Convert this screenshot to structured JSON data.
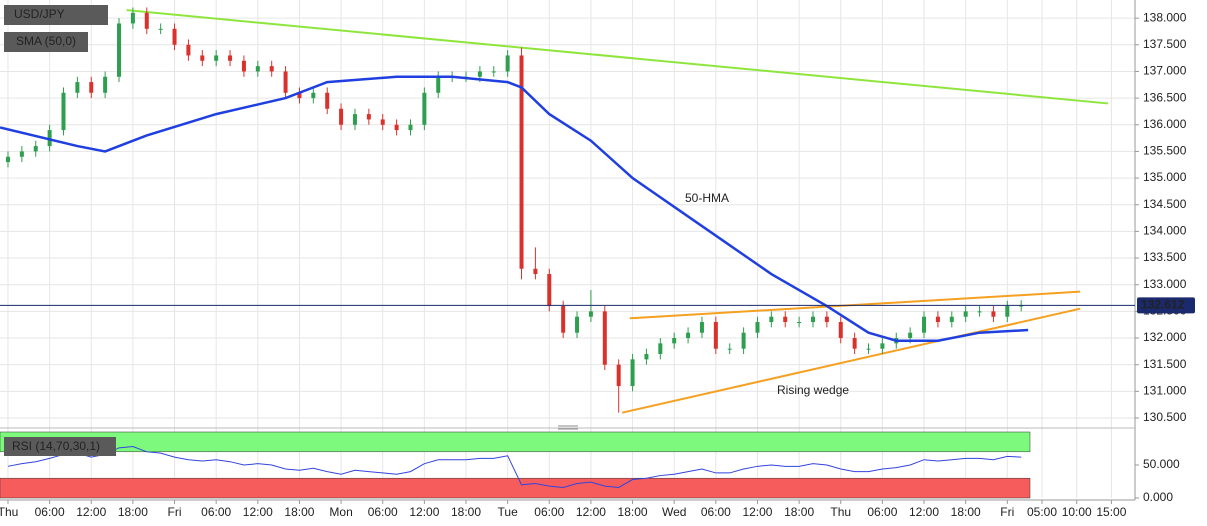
{
  "chart_data": {
    "type": "candlestick",
    "title": "USD/JPY",
    "indicator_label": "SMA (50,0)",
    "x": [
      0,
      2,
      4,
      6,
      8,
      10,
      12,
      14,
      16,
      18,
      20,
      22,
      24,
      26,
      28,
      30,
      32,
      34,
      36,
      38,
      40,
      42,
      44,
      46,
      48,
      50,
      52,
      54,
      56,
      58,
      60,
      62,
      64,
      66,
      68,
      70,
      72,
      74,
      76,
      78,
      80,
      82,
      84,
      86,
      88,
      90,
      92,
      94,
      96,
      98,
      100,
      102,
      104,
      106,
      108,
      110,
      112,
      114,
      116,
      118,
      120,
      122,
      124,
      126,
      128,
      130,
      132,
      134,
      136,
      138,
      140,
      142,
      144,
      146
    ],
    "open": [
      135.3,
      135.4,
      135.5,
      135.6,
      135.9,
      136.6,
      136.8,
      136.6,
      136.9,
      137.9,
      138.1,
      137.8,
      137.8,
      137.5,
      137.3,
      137.2,
      137.3,
      137.2,
      137.0,
      137.1,
      137.0,
      136.6,
      136.5,
      136.6,
      136.3,
      136.0,
      136.2,
      136.1,
      136.0,
      135.9,
      136.0,
      136.6,
      136.9,
      136.9,
      136.9,
      137.0,
      137.0,
      137.3,
      133.3,
      133.2,
      132.6,
      132.1,
      132.4,
      132.5,
      131.5,
      131.1,
      131.6,
      131.7,
      131.9,
      132.0,
      132.1,
      132.3,
      131.8,
      131.8,
      132.1,
      132.3,
      132.4,
      132.3,
      132.3,
      132.4,
      132.3,
      132.0,
      131.8,
      131.8,
      131.9,
      132.0,
      132.1,
      132.4,
      132.3,
      132.4,
      132.5,
      132.5,
      132.4,
      132.6
    ],
    "high": [
      135.5,
      135.6,
      135.7,
      136.0,
      136.7,
      136.9,
      136.9,
      137.0,
      138.0,
      138.2,
      138.2,
      137.9,
      137.9,
      137.6,
      137.4,
      137.4,
      137.4,
      137.3,
      137.2,
      137.2,
      137.1,
      136.7,
      136.7,
      136.7,
      136.4,
      136.3,
      136.3,
      136.2,
      136.1,
      136.1,
      136.7,
      137.0,
      137.0,
      137.0,
      137.1,
      137.1,
      137.4,
      137.45,
      133.7,
      133.3,
      132.7,
      132.5,
      132.9,
      132.6,
      131.6,
      131.7,
      131.8,
      132.0,
      132.1,
      132.2,
      132.4,
      132.4,
      131.9,
      132.2,
      132.4,
      132.5,
      132.5,
      132.4,
      132.5,
      132.5,
      132.4,
      132.1,
      131.9,
      132.0,
      132.1,
      132.2,
      132.5,
      132.5,
      132.5,
      132.6,
      132.6,
      132.6,
      132.7,
      132.71
    ],
    "low": [
      135.2,
      135.3,
      135.4,
      135.5,
      135.8,
      136.5,
      136.5,
      136.5,
      136.8,
      137.8,
      137.7,
      137.7,
      137.4,
      137.2,
      137.1,
      137.1,
      137.1,
      136.9,
      136.9,
      136.9,
      136.5,
      136.4,
      136.4,
      136.2,
      135.9,
      135.9,
      136.0,
      135.9,
      135.8,
      135.8,
      135.9,
      136.5,
      136.8,
      136.8,
      136.8,
      136.9,
      136.9,
      133.1,
      133.1,
      132.5,
      132.0,
      132.0,
      132.3,
      131.4,
      130.6,
      131.0,
      131.5,
      131.6,
      131.8,
      131.9,
      132.0,
      131.7,
      131.7,
      131.7,
      132.0,
      132.2,
      132.2,
      132.2,
      132.2,
      132.2,
      131.9,
      131.7,
      131.7,
      131.7,
      131.8,
      131.9,
      132.0,
      132.2,
      132.2,
      132.3,
      132.4,
      132.3,
      132.3,
      132.5
    ],
    "close": [
      135.4,
      135.5,
      135.6,
      135.9,
      136.6,
      136.8,
      136.6,
      136.9,
      137.9,
      138.1,
      137.8,
      137.8,
      137.5,
      137.3,
      137.2,
      137.3,
      137.2,
      137.0,
      137.1,
      137.0,
      136.6,
      136.5,
      136.6,
      136.3,
      136.0,
      136.2,
      136.1,
      136.0,
      135.9,
      136.0,
      136.6,
      136.9,
      136.9,
      136.9,
      137.0,
      137.0,
      137.3,
      133.3,
      133.2,
      132.6,
      132.1,
      132.4,
      132.5,
      131.5,
      131.1,
      131.6,
      131.7,
      131.9,
      132.0,
      132.1,
      132.3,
      131.8,
      131.8,
      132.1,
      132.3,
      132.4,
      132.3,
      132.3,
      132.4,
      132.3,
      132.0,
      131.8,
      131.8,
      131.9,
      132.0,
      132.1,
      132.4,
      132.3,
      132.4,
      132.5,
      132.5,
      132.4,
      132.6,
      132.61
    ],
    "up_color": "#2e9e4f",
    "down_color": "#d9312b",
    "xlim": [
      -1.15,
      162.4
    ],
    "xticks": [
      {
        "value": 0,
        "label": "Thu"
      },
      {
        "value": 6,
        "label": "06:00"
      },
      {
        "value": 12,
        "label": "12:00"
      },
      {
        "value": 18,
        "label": "18:00"
      },
      {
        "value": 24,
        "label": "Fri"
      },
      {
        "value": 30,
        "label": "06:00"
      },
      {
        "value": 36,
        "label": "12:00"
      },
      {
        "value": 42,
        "label": "18:00"
      },
      {
        "value": 48,
        "label": "Mon"
      },
      {
        "value": 54,
        "label": "06:00"
      },
      {
        "value": 60,
        "label": "12:00"
      },
      {
        "value": 66,
        "label": "18:00"
      },
      {
        "value": 72,
        "label": "Tue"
      },
      {
        "value": 78,
        "label": "06:00"
      },
      {
        "value": 84,
        "label": "12:00"
      },
      {
        "value": 90,
        "label": "18:00"
      },
      {
        "value": 96,
        "label": "Wed"
      },
      {
        "value": 102,
        "label": "06:00"
      },
      {
        "value": 108,
        "label": "12:00"
      },
      {
        "value": 114,
        "label": "18:00"
      },
      {
        "value": 120,
        "label": "Thu"
      },
      {
        "value": 126,
        "label": "06:00"
      },
      {
        "value": 132,
        "label": "12:00"
      },
      {
        "value": 138,
        "label": "18:00"
      },
      {
        "value": 144,
        "label": "Fri"
      },
      {
        "value": 149,
        "label": "05:00"
      },
      {
        "value": 154,
        "label": "10:00"
      },
      {
        "value": 159,
        "label": "15:00"
      }
    ],
    "ylim": [
      130.35,
      138.34
    ],
    "yticks": [
      {
        "value": 130.5,
        "label": "130.500"
      },
      {
        "value": 131,
        "label": "131.000"
      },
      {
        "value": 131.5,
        "label": "131.500"
      },
      {
        "value": 132,
        "label": "132.000"
      },
      {
        "value": 132.5,
        "label": "132.500"
      },
      {
        "value": 133,
        "label": "133.000"
      },
      {
        "value": 133.5,
        "label": "133.500"
      },
      {
        "value": 134,
        "label": "134.000"
      },
      {
        "value": 134.5,
        "label": "134.500"
      },
      {
        "value": 135,
        "label": "135.000"
      },
      {
        "value": 135.5,
        "label": "135.500"
      },
      {
        "value": 136,
        "label": "136.000"
      },
      {
        "value": 136.5,
        "label": "136.500"
      },
      {
        "value": 137,
        "label": "137.000"
      },
      {
        "value": 137.5,
        "label": "137.500"
      },
      {
        "value": 138,
        "label": "138.000"
      }
    ],
    "last_price": 132.612,
    "lines": [
      {
        "name": "50-HMA",
        "color": "#1f3fe0",
        "x": [
          -1.15,
          10,
          14,
          20,
          30,
          40,
          46,
          56,
          64,
          72,
          74,
          78,
          84,
          90,
          100,
          110,
          118,
          124,
          128,
          134,
          140,
          147
        ],
        "values": [
          135.95,
          135.6,
          135.5,
          135.8,
          136.2,
          136.5,
          136.8,
          136.9,
          136.9,
          136.8,
          136.7,
          136.2,
          135.7,
          135.0,
          134.1,
          133.2,
          132.6,
          132.1,
          131.95,
          131.95,
          132.1,
          132.15
        ]
      }
    ],
    "trendlines": [
      {
        "color": "#8ee63c",
        "x": [
          17.1,
          158.5
        ],
        "values": [
          138.15,
          136.4
        ]
      },
      {
        "color": "#f5a020",
        "x": [
          89.6,
          154.5
        ],
        "values": [
          132.37,
          132.87
        ]
      },
      {
        "color": "#f5a020",
        "x": [
          88.5,
          154.5
        ],
        "values": [
          130.6,
          132.55
        ]
      }
    ],
    "wedge_label": "Rising wedge",
    "rsi": {
      "label": "RSI (14,70,30,1)",
      "color": "#3344dd",
      "ylim": [
        0,
        100
      ],
      "yticks": [
        {
          "value": 0,
          "label": "0.000"
        },
        {
          "value": 50,
          "label": "50.000"
        }
      ],
      "overbought": 70,
      "oversold": 30,
      "values": [
        48,
        52,
        55,
        60,
        66,
        68,
        62,
        66,
        76,
        78,
        70,
        68,
        62,
        58,
        56,
        58,
        55,
        50,
        52,
        50,
        44,
        42,
        45,
        40,
        36,
        42,
        40,
        38,
        36,
        40,
        52,
        58,
        58,
        58,
        60,
        60,
        64,
        20,
        22,
        18,
        16,
        22,
        24,
        18,
        16,
        28,
        30,
        34,
        36,
        40,
        44,
        38,
        38,
        44,
        48,
        50,
        48,
        48,
        52,
        50,
        44,
        40,
        40,
        44,
        46,
        50,
        58,
        56,
        58,
        60,
        60,
        58,
        63,
        62
      ]
    }
  }
}
